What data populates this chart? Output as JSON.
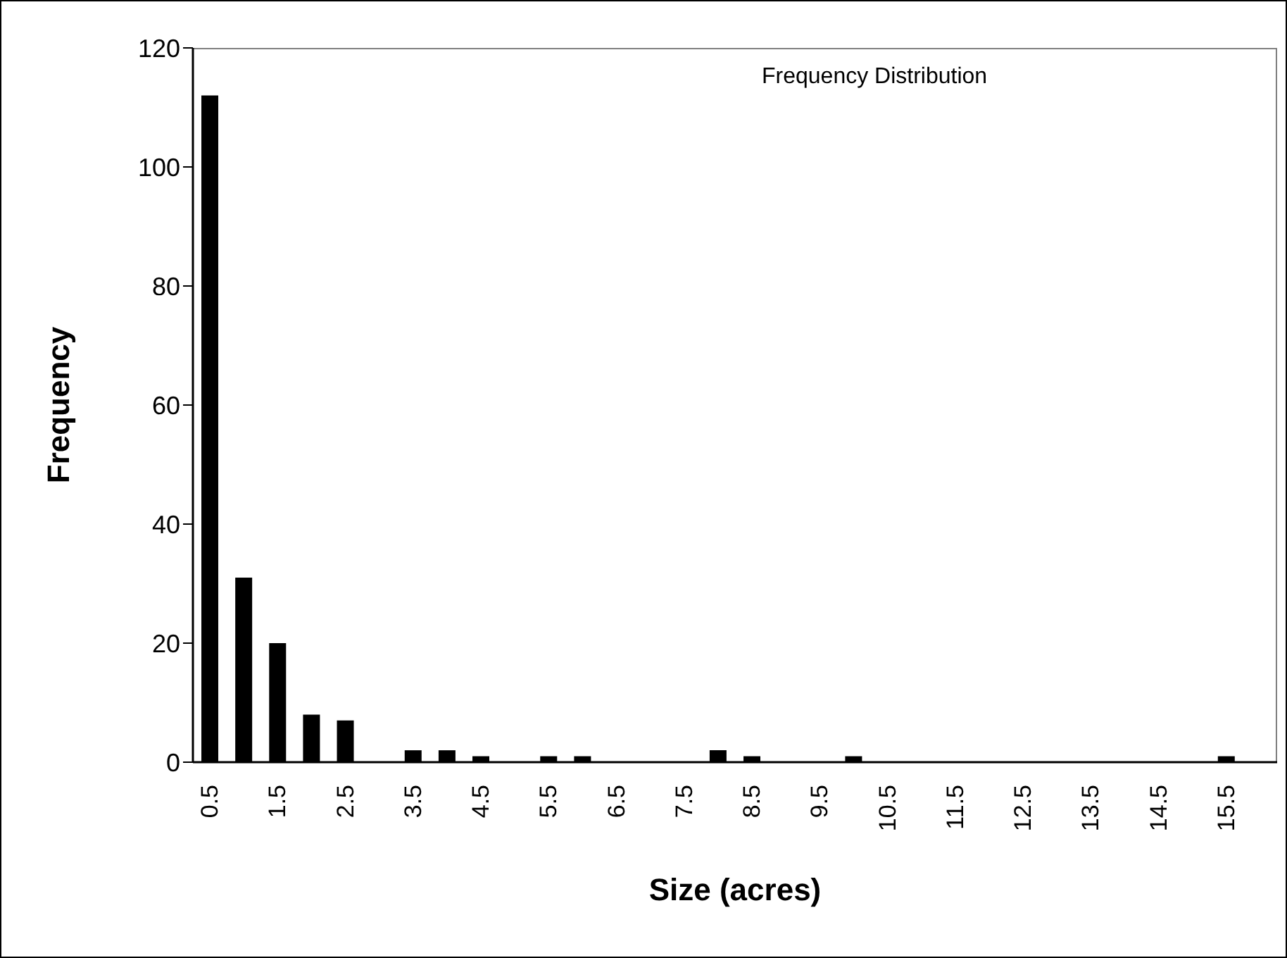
{
  "chart_data": {
    "type": "bar",
    "title": "Frequency Distribution",
    "xlabel": "Size (acres)",
    "ylabel": "Frequency",
    "categories": [
      "0.5",
      null,
      "1.5",
      null,
      "2.5",
      null,
      "3.5",
      null,
      "4.5",
      null,
      "5.5",
      null,
      "6.5",
      null,
      "7.5",
      null,
      "8.5",
      null,
      "9.5",
      null,
      "10.5",
      null,
      "11.5",
      null,
      "12.5",
      null,
      "13.5",
      null,
      "14.5",
      null,
      "15.5",
      null
    ],
    "values": [
      112,
      31,
      20,
      8,
      7,
      0,
      2,
      2,
      1,
      0,
      1,
      1,
      0,
      0,
      0,
      2,
      1,
      0,
      0,
      1,
      0,
      0,
      0,
      0,
      0,
      0,
      0,
      0,
      0,
      0,
      1,
      0
    ],
    "color": "#000000",
    "ylim": [
      0,
      120
    ],
    "yticks": [
      0,
      20,
      40,
      60,
      80,
      100,
      120
    ]
  }
}
